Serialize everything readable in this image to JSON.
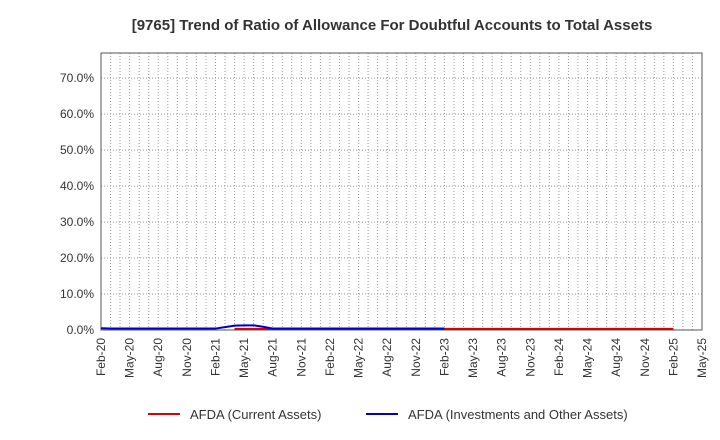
{
  "chart_data": {
    "type": "line",
    "title": "[9765]  Trend of Ratio of Allowance For Doubtful Accounts to Total Assets",
    "xlabel": "",
    "ylabel": "",
    "ylim": [
      0,
      77
    ],
    "y_ticks": [
      0,
      10,
      20,
      30,
      40,
      50,
      60,
      70
    ],
    "y_tick_labels": [
      "0.0%",
      "10.0%",
      "20.0%",
      "30.0%",
      "40.0%",
      "50.0%",
      "60.0%",
      "70.0%"
    ],
    "x_tick_labels": [
      "Feb-20",
      "May-20",
      "Aug-20",
      "Nov-20",
      "Feb-21",
      "May-21",
      "Aug-21",
      "Nov-21",
      "Feb-22",
      "May-22",
      "Aug-22",
      "Nov-22",
      "Feb-23",
      "May-23",
      "Aug-23",
      "Nov-23",
      "Feb-24",
      "May-24",
      "Aug-24",
      "Nov-24",
      "Feb-25",
      "May-25"
    ],
    "grid": true,
    "legend_position": "bottom",
    "series": [
      {
        "name": "AFDA (Current Assets)",
        "color": "#dd0000",
        "values": [
          0.6,
          null,
          null,
          null,
          null,
          null,
          null,
          null,
          null,
          null,
          null,
          null,
          null,
          null,
          0.3,
          0.3,
          0.3,
          0.3,
          0.3,
          0.3,
          0.3,
          0.3,
          0.3,
          0.3,
          0.3,
          0.3,
          0.3,
          0.3,
          0.3,
          0.3,
          0.3,
          0.3,
          0.3,
          0.3,
          0.3,
          0.3,
          0.3,
          0.3,
          0.3,
          0.3,
          0.3,
          0.3,
          0.3,
          0.3,
          0.3,
          0.3,
          0.3,
          0.3,
          0.3,
          0.3,
          0.3,
          0.3,
          0.3,
          0.3,
          0.3,
          0.3,
          0.3,
          0.3,
          0.3,
          0.3,
          0.3
        ]
      },
      {
        "name": "AFDA (Investments and Other Assets)",
        "color": "#0000cc",
        "values": [
          0.5,
          0.4,
          0.4,
          0.4,
          0.4,
          0.4,
          0.4,
          0.4,
          0.4,
          0.4,
          0.4,
          0.4,
          0.4,
          0.8,
          1.2,
          1.3,
          1.3,
          0.9,
          0.4,
          0.4,
          0.4,
          0.4,
          0.4,
          0.4,
          0.4,
          0.4,
          0.4,
          0.4,
          0.4,
          0.4,
          0.4,
          0.4,
          0.4,
          0.4,
          0.4,
          0.4,
          0.4,
          null,
          null,
          null,
          null,
          null,
          null,
          null,
          null,
          null,
          null,
          null,
          null,
          null,
          null,
          null,
          null,
          null,
          null,
          null,
          null,
          null,
          null,
          null,
          null,
          null,
          null,
          null,
          null,
          null
        ]
      }
    ]
  }
}
